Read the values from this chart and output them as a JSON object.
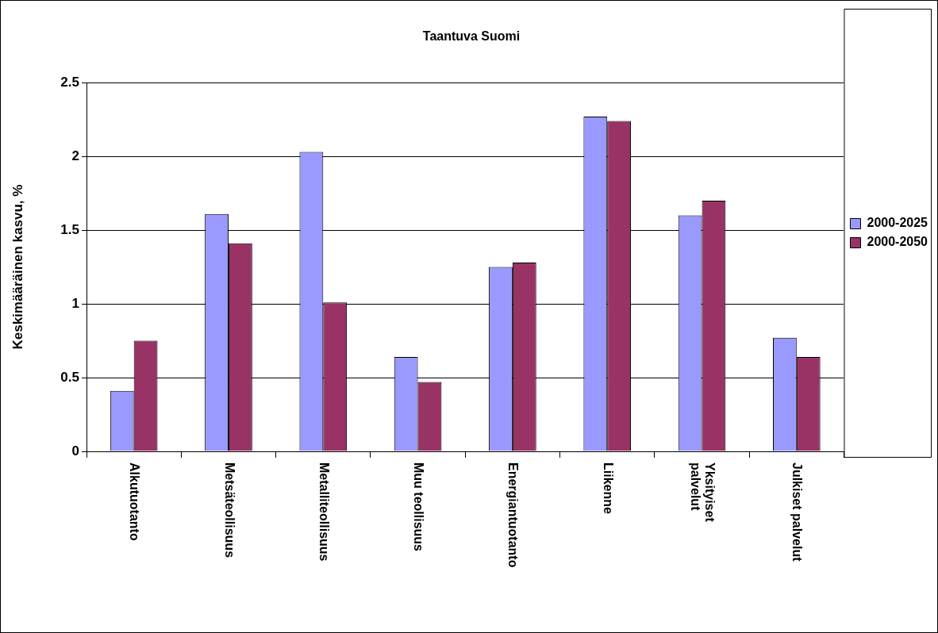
{
  "chart_data": {
    "type": "bar",
    "title": "Taantuva Suomi",
    "ylabel": "Keskimääräinen kasvu, %",
    "categories": [
      "Alkutuotanto",
      "Metsäteollisuus",
      "Metalliteollisuus",
      "Muu teollisuus",
      "Energiantuotanto",
      "Liikenne",
      "Yksityiset\npalvelut",
      "Julkiset palvelut"
    ],
    "series": [
      {
        "name": "2000-2025",
        "color": "#9999ff",
        "values": [
          0.41,
          1.61,
          2.03,
          0.64,
          1.25,
          2.27,
          1.6,
          0.77
        ]
      },
      {
        "name": "2000-2050",
        "color": "#993366",
        "values": [
          0.75,
          1.41,
          1.01,
          0.47,
          1.28,
          2.24,
          1.7,
          0.64
        ]
      }
    ],
    "ylim": [
      0,
      2.5
    ],
    "yticks": [
      0,
      0.5,
      1,
      1.5,
      2,
      2.5
    ],
    "grid": "y",
    "legend": "right"
  }
}
